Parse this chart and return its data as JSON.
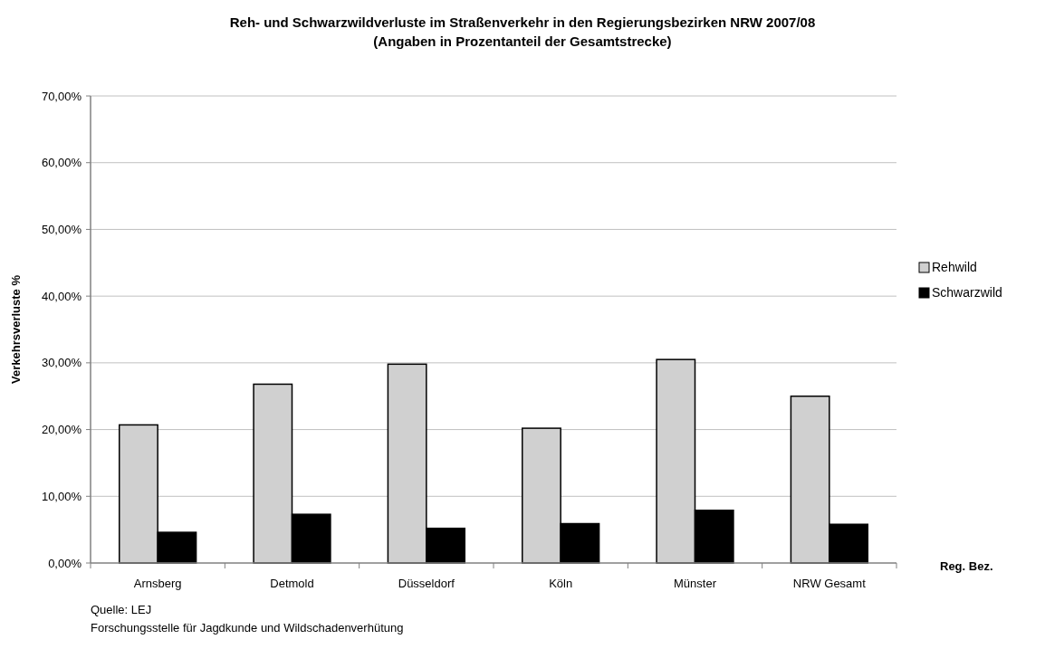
{
  "chart_data": {
    "type": "bar",
    "title": "Reh- und Schwarzwildverluste im Straßenverkehr in den Regierungsbezirken NRW 2007/08",
    "subtitle": "(Angaben in Prozentanteil der Gesamtstrecke)",
    "xlabel": "Reg. Bez.",
    "ylabel": "Verkehrsverluste %",
    "categories": [
      "Arnsberg",
      "Detmold",
      "Düsseldorf",
      "Köln",
      "Münster",
      "NRW Gesamt"
    ],
    "series": [
      {
        "name": "Rehwild",
        "color": "#d0d0d0",
        "values": [
          20.7,
          26.8,
          29.8,
          20.2,
          30.5,
          25.0
        ]
      },
      {
        "name": "Schwarzwild",
        "color": "#000000",
        "values": [
          4.6,
          7.3,
          5.2,
          5.9,
          7.9,
          5.8
        ]
      }
    ],
    "ylim": [
      0,
      70
    ],
    "yticks": [
      {
        "value": 0,
        "label": "0,00%"
      },
      {
        "value": 10,
        "label": "10,00%"
      },
      {
        "value": 20,
        "label": "20,00%"
      },
      {
        "value": 30,
        "label": "30,00%"
      },
      {
        "value": 40,
        "label": "40,00%"
      },
      {
        "value": 50,
        "label": "50,00%"
      },
      {
        "value": 60,
        "label": "60,00%"
      },
      {
        "value": 70,
        "label": "70,00%"
      }
    ],
    "grid": "y",
    "legend": "right",
    "annotations": [
      "Quelle: LEJ",
      "Forschungsstelle für Jagdkunde und Wildschadenverhütung"
    ]
  }
}
